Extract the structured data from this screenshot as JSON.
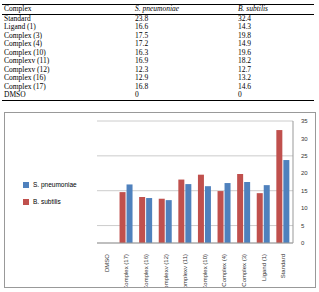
{
  "table": {
    "header": [
      "Complex",
      "S. pneumoniae",
      "B. subtilis"
    ],
    "rows": [
      [
        "Standard",
        "23.8",
        "32.4"
      ],
      [
        "Ligand (1)",
        "16.6",
        "14.3"
      ],
      [
        "Complex (3)",
        "17.5",
        "19.8"
      ],
      [
        "Complex (4)",
        "17.2",
        "14.9"
      ],
      [
        "Complex (10)",
        "16.3",
        "19.6"
      ],
      [
        "Complexv (11)",
        "16.9",
        "18.2"
      ],
      [
        "Complexv (12)",
        "12.3",
        "12.7"
      ],
      [
        "Complex (16)",
        "12.9",
        "13.2"
      ],
      [
        "Complex (17)",
        "16.8",
        "14.6"
      ],
      [
        "DMSO",
        "0",
        "0"
      ]
    ]
  },
  "chart_data": {
    "type": "bar",
    "categories": [
      "DMSO",
      "Complex (17)",
      "Complex (16)",
      "Complexv (12)",
      "Complexv (11)",
      "Complex (10)",
      "Complex (4)",
      "Complex (3)",
      "Ligand (1)",
      "Standard"
    ],
    "series": [
      {
        "name": "S. pneumoniae",
        "color": "#4f81bd",
        "values": [
          0,
          16.8,
          12.9,
          12.3,
          16.9,
          16.3,
          17.2,
          17.5,
          16.6,
          23.8
        ]
      },
      {
        "name": "B. subtilis",
        "color": "#c0504d",
        "values": [
          0,
          14.6,
          13.2,
          12.7,
          18.2,
          19.6,
          14.9,
          19.8,
          14.3,
          32.4
        ]
      }
    ],
    "ylim": [
      0,
      35
    ],
    "yticks": [
      0,
      5,
      10,
      15,
      20,
      25,
      30,
      35
    ],
    "grid": true,
    "legend": "left"
  }
}
